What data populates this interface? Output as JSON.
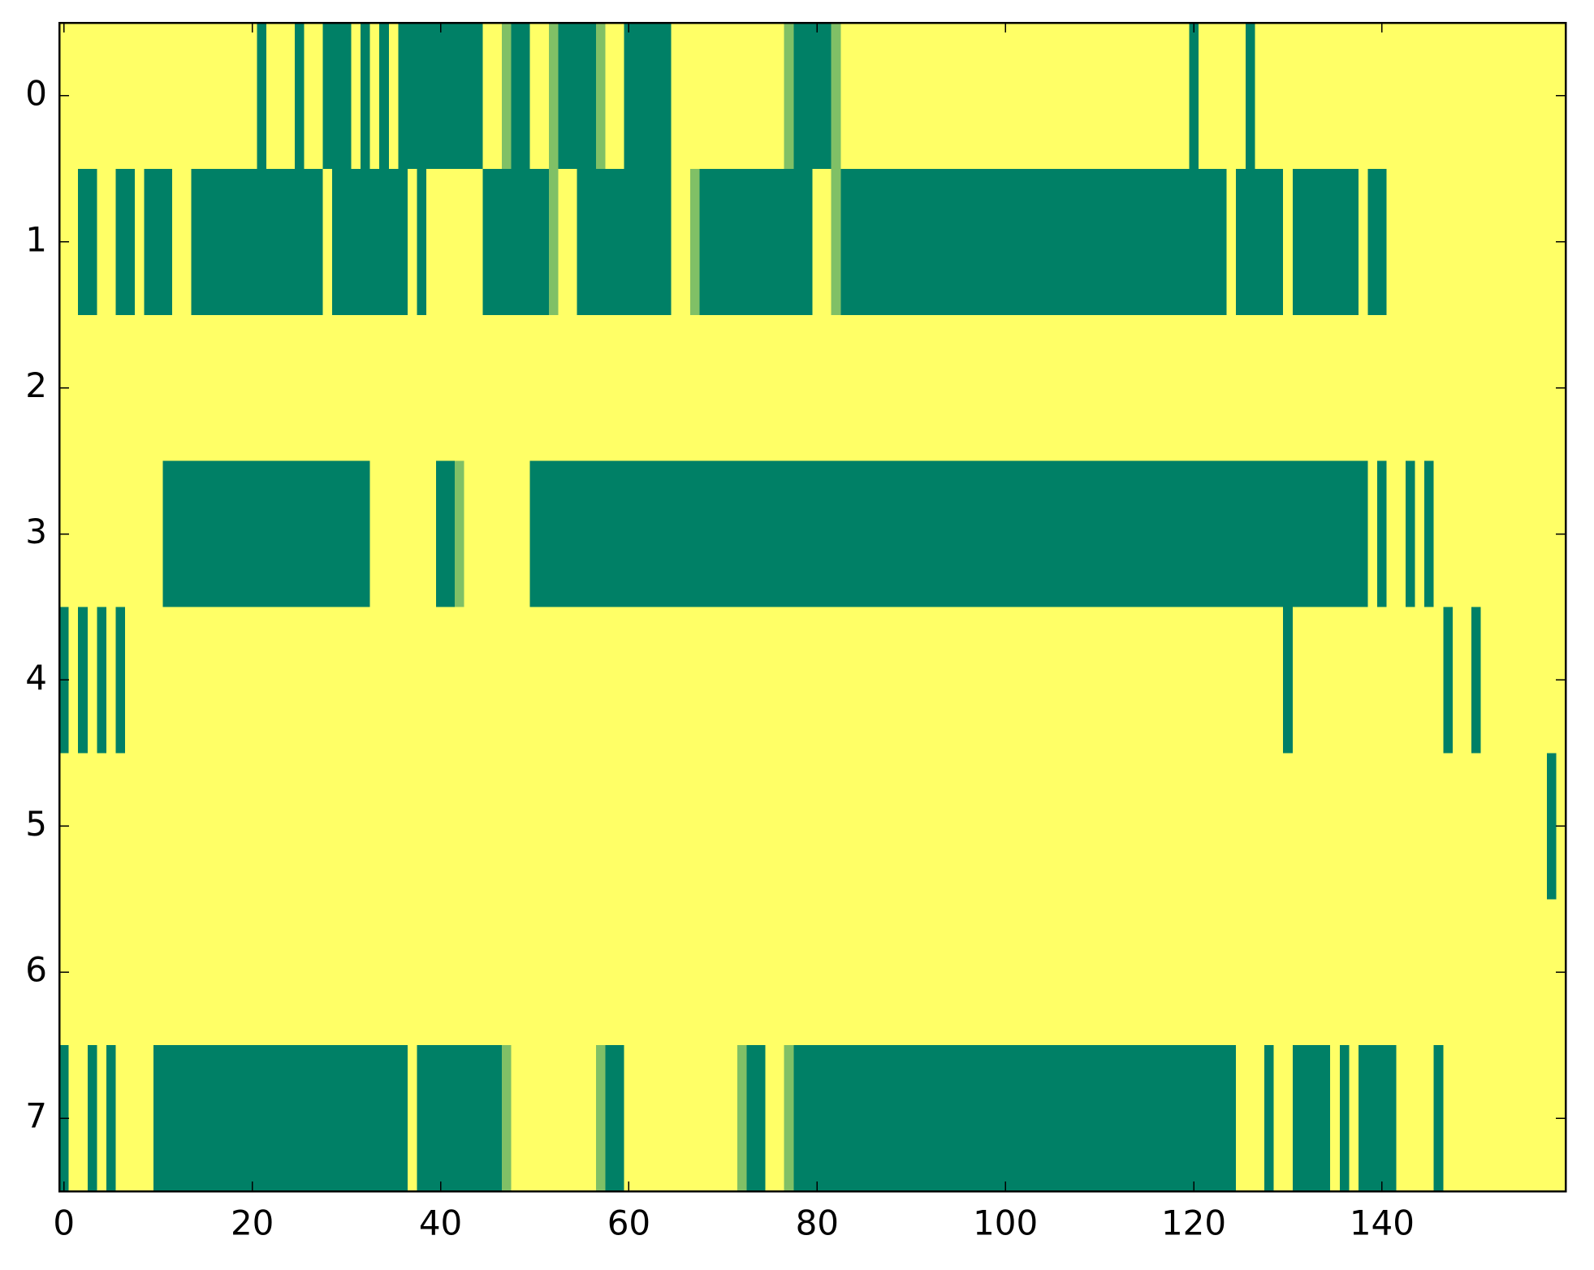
{
  "chart_data": {
    "type": "heatmap",
    "colorscale": [
      "#008066",
      "#ffff66"
    ],
    "zlim": [
      0,
      1
    ],
    "xlim": [
      -0.5,
      159.5
    ],
    "ylim": [
      7.5,
      -0.5
    ],
    "xticks": [
      0,
      20,
      40,
      60,
      80,
      100,
      120,
      140
    ],
    "yticks": [
      0,
      1,
      2,
      3,
      4,
      5,
      6,
      7
    ],
    "z": [
      [
        1,
        1,
        1,
        1,
        1,
        1,
        1,
        1,
        1,
        1,
        1,
        1,
        1,
        1,
        1,
        1,
        1,
        1,
        1,
        1,
        1,
        0,
        1,
        1,
        1,
        0,
        1,
        1,
        0,
        0,
        0,
        1,
        0,
        1,
        0,
        1,
        0,
        0,
        0,
        0,
        0,
        0,
        0,
        0,
        0,
        1,
        1,
        0.5,
        0,
        0,
        1,
        1,
        0.5,
        0,
        0,
        0,
        0,
        0.5,
        1,
        1,
        0,
        0,
        0,
        0,
        0,
        1,
        1,
        1,
        1,
        1,
        1,
        1,
        1,
        1,
        1,
        1,
        1,
        0.5,
        0,
        0,
        0,
        0,
        0.5,
        1,
        1,
        1,
        1,
        1,
        1,
        1,
        1,
        1,
        1,
        1,
        1,
        1,
        1,
        1,
        1,
        1,
        1,
        1,
        1,
        1,
        1,
        1,
        1,
        1,
        1,
        1,
        1,
        1,
        1,
        1,
        1,
        1,
        1,
        1,
        1,
        1,
        0,
        1,
        1,
        1,
        1,
        1,
        0,
        1,
        1,
        1,
        1,
        1,
        1,
        1,
        1,
        1,
        1,
        1,
        1,
        1,
        1,
        1,
        1,
        1,
        1,
        1,
        1,
        1,
        1,
        1,
        1,
        1,
        1,
        1,
        1,
        1,
        1,
        1,
        1,
        1
      ],
      [
        1,
        1,
        0,
        0,
        1,
        1,
        0,
        0,
        1,
        0,
        0,
        0,
        1,
        1,
        0,
        0,
        0,
        0,
        0,
        0,
        0,
        0,
        0,
        0,
        0,
        0,
        0,
        0,
        1,
        0,
        0,
        0,
        0,
        0,
        0,
        0,
        0,
        1,
        0,
        1,
        1,
        1,
        1,
        1,
        1,
        0,
        0,
        0,
        0,
        0,
        0,
        0,
        0.5,
        1,
        1,
        0,
        0,
        0,
        0,
        0,
        0,
        0,
        0,
        0,
        0,
        1,
        1,
        0.5,
        0,
        0,
        0,
        0,
        0,
        0,
        0,
        0,
        0,
        0,
        0,
        0,
        1,
        1,
        0.5,
        0,
        0,
        0,
        0,
        0,
        0,
        0,
        0,
        0,
        0,
        0,
        0,
        0,
        0,
        0,
        0,
        0,
        0,
        0,
        0,
        0,
        0,
        0,
        0,
        0,
        0,
        0,
        0,
        0,
        0,
        0,
        0,
        0,
        0,
        0,
        0,
        0,
        0,
        0,
        0,
        0,
        1,
        0,
        0,
        0,
        0,
        0,
        1,
        0,
        0,
        0,
        0,
        0,
        0,
        0,
        1,
        0,
        0,
        1,
        1,
        1,
        1,
        1,
        1,
        1,
        1,
        1,
        1,
        1,
        1,
        1,
        1,
        1,
        1,
        1,
        1,
        1
      ],
      [
        1,
        1,
        1,
        1,
        1,
        1,
        1,
        1,
        1,
        1,
        1,
        1,
        1,
        1,
        1,
        1,
        1,
        1,
        1,
        1,
        1,
        1,
        1,
        1,
        1,
        1,
        1,
        1,
        1,
        1,
        1,
        1,
        1,
        1,
        1,
        1,
        1,
        1,
        1,
        1,
        1,
        1,
        1,
        1,
        1,
        1,
        1,
        1,
        1,
        1,
        1,
        1,
        1,
        1,
        1,
        1,
        1,
        1,
        1,
        1,
        1,
        1,
        1,
        1,
        1,
        1,
        1,
        1,
        1,
        1,
        1,
        1,
        1,
        1,
        1,
        1,
        1,
        1,
        1,
        1,
        1,
        1,
        1,
        1,
        1,
        1,
        1,
        1,
        1,
        1,
        1,
        1,
        1,
        1,
        1,
        1,
        1,
        1,
        1,
        1,
        1,
        1,
        1,
        1,
        1,
        1,
        1,
        1,
        1,
        1,
        1,
        1,
        1,
        1,
        1,
        1,
        1,
        1,
        1,
        1,
        1,
        1,
        1,
        1,
        1,
        1,
        1,
        1,
        1,
        1,
        1,
        1,
        1,
        1,
        1,
        1,
        1,
        1,
        1,
        1,
        1,
        1,
        1,
        1,
        1,
        1,
        1,
        1,
        1,
        1,
        1,
        1,
        1,
        1,
        1,
        1,
        1,
        1,
        1,
        1
      ],
      [
        1,
        1,
        1,
        1,
        1,
        1,
        1,
        1,
        1,
        1,
        1,
        0,
        0,
        0,
        0,
        0,
        0,
        0,
        0,
        0,
        0,
        0,
        0,
        0,
        0,
        0,
        0,
        0,
        0,
        0,
        0,
        0,
        0,
        1,
        1,
        1,
        1,
        1,
        1,
        1,
        0,
        0,
        0.5,
        1,
        1,
        1,
        1,
        1,
        1,
        1,
        0,
        0,
        0,
        0,
        0,
        0,
        0,
        0,
        0,
        0,
        0,
        0,
        0,
        0,
        0,
        0,
        0,
        0,
        0,
        0,
        0,
        0,
        0,
        0,
        0,
        0,
        0,
        0,
        0,
        0,
        0,
        0,
        0,
        0,
        0,
        0,
        0,
        0,
        0,
        0,
        0,
        0,
        0,
        0,
        0,
        0,
        0,
        0,
        0,
        0,
        0,
        0,
        0,
        0,
        0,
        0,
        0,
        0,
        0,
        0,
        0,
        0,
        0,
        0,
        0,
        0,
        0,
        0,
        0,
        0,
        0,
        0,
        0,
        0,
        0,
        0,
        0,
        0,
        0,
        0,
        0,
        0,
        0,
        0,
        0,
        0,
        0,
        0,
        0,
        1,
        0,
        1,
        1,
        0,
        1,
        0,
        1,
        1,
        1,
        1,
        1,
        1,
        1,
        1,
        1,
        1,
        1,
        1,
        1,
        1
      ],
      [
        0,
        1,
        0,
        1,
        0,
        1,
        0,
        1,
        1,
        1,
        1,
        1,
        1,
        1,
        1,
        1,
        1,
        1,
        1,
        1,
        1,
        1,
        1,
        1,
        1,
        1,
        1,
        1,
        1,
        1,
        1,
        1,
        1,
        1,
        1,
        1,
        1,
        1,
        1,
        1,
        1,
        1,
        1,
        1,
        1,
        1,
        1,
        1,
        1,
        1,
        1,
        1,
        1,
        1,
        1,
        1,
        1,
        1,
        1,
        1,
        1,
        1,
        1,
        1,
        1,
        1,
        1,
        1,
        1,
        1,
        1,
        1,
        1,
        1,
        1,
        1,
        1,
        1,
        1,
        1,
        1,
        1,
        1,
        1,
        1,
        1,
        1,
        1,
        1,
        1,
        1,
        1,
        1,
        1,
        1,
        1,
        1,
        1,
        1,
        1,
        1,
        1,
        1,
        1,
        1,
        1,
        1,
        1,
        1,
        1,
        1,
        1,
        1,
        1,
        1,
        1,
        1,
        1,
        1,
        1,
        1,
        1,
        1,
        1,
        1,
        1,
        1,
        1,
        1,
        1,
        0,
        1,
        1,
        1,
        1,
        1,
        1,
        1,
        1,
        1,
        1,
        1,
        1,
        1,
        1,
        1,
        1,
        0,
        1,
        1,
        0,
        1,
        1,
        1,
        1,
        1,
        1,
        1,
        1,
        1
      ],
      [
        1,
        1,
        1,
        1,
        1,
        1,
        1,
        1,
        1,
        1,
        1,
        1,
        1,
        1,
        1,
        1,
        1,
        1,
        1,
        1,
        1,
        1,
        1,
        1,
        1,
        1,
        1,
        1,
        1,
        1,
        1,
        1,
        1,
        1,
        1,
        1,
        1,
        1,
        1,
        1,
        1,
        1,
        1,
        1,
        1,
        1,
        1,
        1,
        1,
        1,
        1,
        1,
        1,
        1,
        1,
        1,
        1,
        1,
        1,
        1,
        1,
        1,
        1,
        1,
        1,
        1,
        1,
        1,
        1,
        1,
        1,
        1,
        1,
        1,
        1,
        1,
        1,
        1,
        1,
        1,
        1,
        1,
        1,
        1,
        1,
        1,
        1,
        1,
        1,
        1,
        1,
        1,
        1,
        1,
        1,
        1,
        1,
        1,
        1,
        1,
        1,
        1,
        1,
        1,
        1,
        1,
        1,
        1,
        1,
        1,
        1,
        1,
        1,
        1,
        1,
        1,
        1,
        1,
        1,
        1,
        1,
        1,
        1,
        1,
        1,
        1,
        1,
        1,
        1,
        1,
        1,
        1,
        1,
        1,
        1,
        1,
        1,
        1,
        1,
        1,
        1,
        1,
        1,
        1,
        1,
        1,
        1,
        1,
        1,
        1,
        1,
        1,
        1,
        1,
        1,
        1,
        1,
        1,
        0,
        1
      ],
      [
        1,
        1,
        1,
        1,
        1,
        1,
        1,
        1,
        1,
        1,
        1,
        1,
        1,
        1,
        1,
        1,
        1,
        1,
        1,
        1,
        1,
        1,
        1,
        1,
        1,
        1,
        1,
        1,
        1,
        1,
        1,
        1,
        1,
        1,
        1,
        1,
        1,
        1,
        1,
        1,
        1,
        1,
        1,
        1,
        1,
        1,
        1,
        1,
        1,
        1,
        1,
        1,
        1,
        1,
        1,
        1,
        1,
        1,
        1,
        1,
        1,
        1,
        1,
        1,
        1,
        1,
        1,
        1,
        1,
        1,
        1,
        1,
        1,
        1,
        1,
        1,
        1,
        1,
        1,
        1,
        1,
        1,
        1,
        1,
        1,
        1,
        1,
        1,
        1,
        1,
        1,
        1,
        1,
        1,
        1,
        1,
        1,
        1,
        1,
        1,
        1,
        1,
        1,
        1,
        1,
        1,
        1,
        1,
        1,
        1,
        1,
        1,
        1,
        1,
        1,
        1,
        1,
        1,
        1,
        1,
        1,
        1,
        1,
        1,
        1,
        1,
        1,
        1,
        1,
        1,
        1,
        1,
        1,
        1,
        1,
        1,
        1,
        1,
        1,
        1,
        1,
        1,
        1,
        1,
        1,
        1,
        1,
        1,
        1,
        1,
        1,
        1,
        1,
        1,
        1,
        1,
        1,
        1,
        1,
        1
      ],
      [
        0,
        1,
        1,
        0,
        1,
        0,
        1,
        1,
        1,
        1,
        0,
        0,
        0,
        0,
        0,
        0,
        0,
        0,
        0,
        0,
        0,
        0,
        0,
        0,
        0,
        0,
        0,
        0,
        0,
        0,
        0,
        0,
        0,
        0,
        0,
        0,
        0,
        1,
        0,
        0,
        0,
        0,
        0,
        0,
        0,
        0,
        0,
        0.5,
        1,
        1,
        1,
        1,
        1,
        1,
        1,
        1,
        1,
        0.5,
        0,
        0,
        1,
        1,
        1,
        1,
        1,
        1,
        1,
        1,
        1,
        1,
        1,
        1,
        0.5,
        0,
        0,
        1,
        1,
        0.5,
        0,
        0,
        0,
        0,
        0,
        0,
        0,
        0,
        0,
        0,
        0,
        0,
        0,
        0,
        0,
        0,
        0,
        0,
        0,
        0,
        0,
        0,
        0,
        0,
        0,
        0,
        0,
        0,
        0,
        0,
        0,
        0,
        0,
        0,
        0,
        0,
        0,
        0,
        0,
        0,
        0,
        0,
        0,
        0,
        0,
        0,
        0,
        1,
        1,
        1,
        0,
        1,
        1,
        0,
        0,
        0,
        0,
        1,
        0,
        1,
        0,
        0,
        0,
        0,
        1,
        1,
        1,
        1,
        0,
        1,
        1,
        1,
        1,
        1,
        1,
        1,
        1,
        1,
        1,
        1,
        1,
        1
      ]
    ]
  }
}
